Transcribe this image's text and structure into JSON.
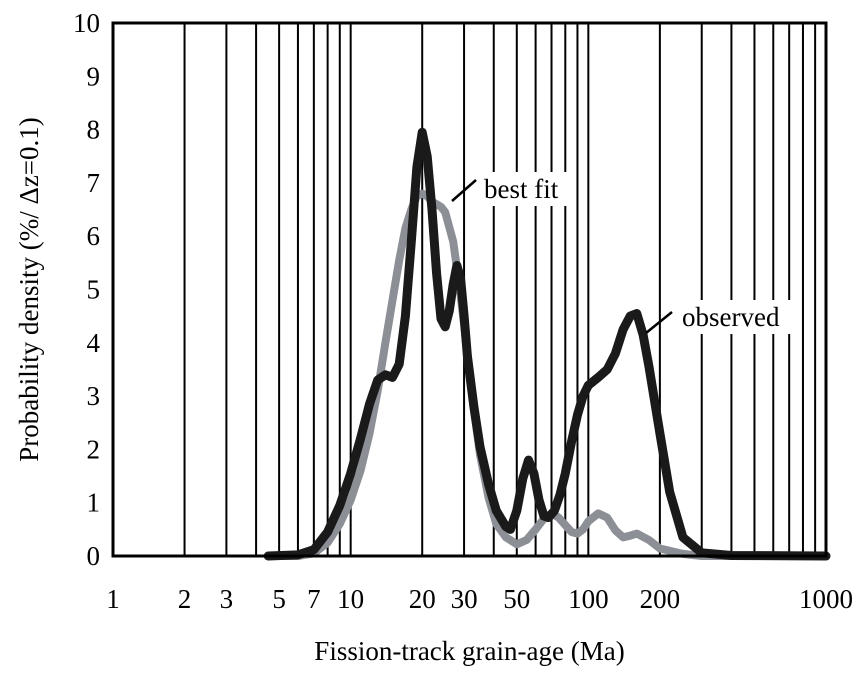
{
  "chart_data": {
    "type": "line",
    "title": "",
    "xlabel": "Fission-track grain-age (Ma)",
    "ylabel": "Probability density (%/ Δz=0.1)",
    "xscale": "log",
    "xlim": [
      1,
      1000
    ],
    "ylim": [
      0,
      10
    ],
    "x_ticks": [
      1,
      2,
      3,
      5,
      7,
      10,
      20,
      30,
      50,
      100,
      200,
      1000
    ],
    "y_ticks": [
      0,
      1,
      2,
      3,
      4,
      5,
      6,
      7,
      8,
      9,
      10
    ],
    "grid": "vertical gridlines at 1-10, 10-100 and 100-1000 decade steps",
    "series": [
      {
        "name": "best fit",
        "color": "#8c9096",
        "x": [
          4.5,
          6,
          7,
          8,
          9,
          10,
          11,
          12,
          13,
          14,
          15,
          16,
          17,
          18,
          19,
          20,
          21,
          22,
          23,
          24,
          25,
          27,
          29,
          31,
          33,
          35,
          38,
          41,
          45,
          50,
          55,
          60,
          65,
          70,
          75,
          80,
          85,
          90,
          95,
          100,
          110,
          120,
          130,
          140,
          150,
          160,
          180,
          200,
          250,
          300,
          1000
        ],
        "values": [
          0,
          0,
          0.05,
          0.25,
          0.6,
          1.05,
          1.6,
          2.3,
          3.1,
          4.0,
          4.8,
          5.55,
          6.15,
          6.5,
          6.75,
          6.8,
          6.75,
          6.65,
          6.6,
          6.55,
          6.45,
          5.9,
          4.9,
          3.8,
          2.75,
          1.9,
          1.1,
          0.6,
          0.35,
          0.22,
          0.3,
          0.5,
          0.7,
          0.8,
          0.72,
          0.58,
          0.45,
          0.42,
          0.5,
          0.65,
          0.8,
          0.72,
          0.48,
          0.35,
          0.38,
          0.42,
          0.3,
          0.14,
          0.04,
          0,
          0
        ]
      },
      {
        "name": "observed",
        "color": "#1a1a1a",
        "x": [
          4.5,
          6,
          7,
          8,
          9,
          10,
          11,
          12,
          13,
          14,
          15,
          16,
          17,
          18,
          19,
          20,
          21,
          22,
          23,
          24,
          25,
          26,
          27,
          28,
          29,
          30,
          31,
          33,
          35,
          38,
          41,
          45,
          47,
          50,
          53,
          56,
          59,
          62,
          65,
          68,
          72,
          76,
          80,
          85,
          90,
          95,
          100,
          110,
          120,
          130,
          140,
          150,
          160,
          170,
          180,
          200,
          220,
          250,
          300,
          400,
          1000
        ],
        "values": [
          0,
          0.02,
          0.12,
          0.45,
          0.95,
          1.55,
          2.2,
          2.85,
          3.3,
          3.4,
          3.35,
          3.6,
          4.5,
          5.9,
          7.3,
          7.95,
          7.5,
          6.5,
          5.3,
          4.45,
          4.3,
          4.6,
          5.1,
          5.45,
          5.2,
          4.5,
          3.75,
          2.8,
          2.05,
          1.35,
          0.85,
          0.55,
          0.5,
          0.85,
          1.45,
          1.8,
          1.55,
          1.05,
          0.75,
          0.72,
          0.85,
          1.15,
          1.55,
          2.15,
          2.65,
          3.0,
          3.2,
          3.35,
          3.5,
          3.8,
          4.25,
          4.5,
          4.55,
          4.15,
          3.55,
          2.3,
          1.2,
          0.35,
          0.06,
          0.01,
          0
        ]
      }
    ],
    "annotations": [
      {
        "text": "best fit",
        "x": 23,
        "y": 6.6
      },
      {
        "text": "observed",
        "x": 165,
        "y": 4.5
      }
    ]
  }
}
